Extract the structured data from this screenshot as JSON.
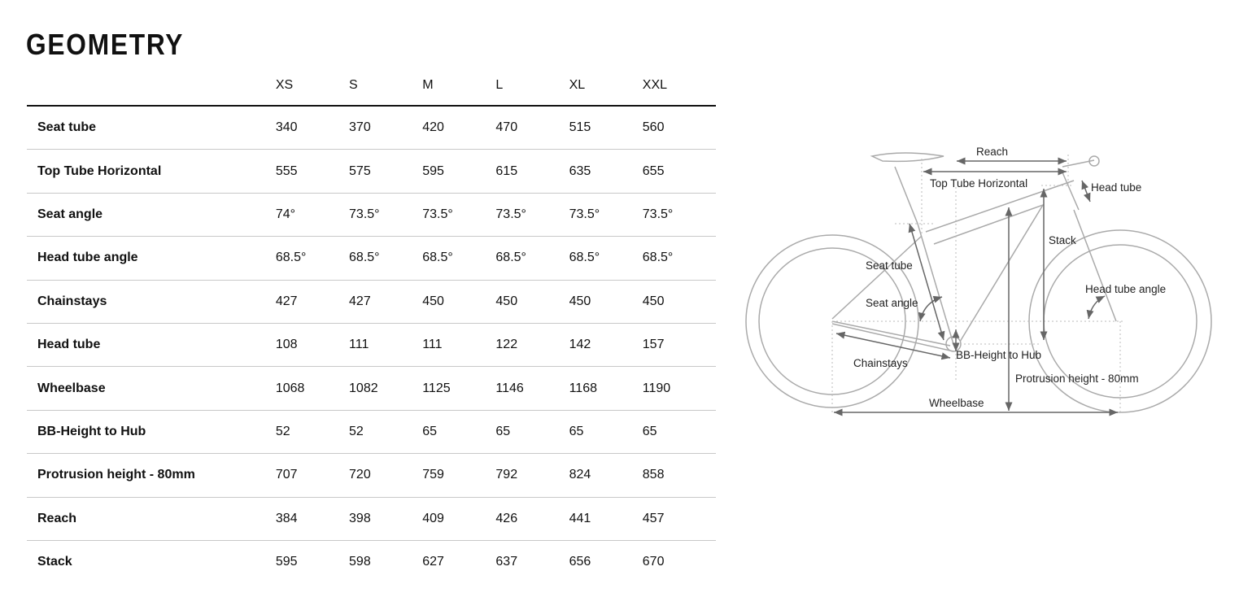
{
  "title": "GEOMETRY",
  "sizes": [
    "XS",
    "S",
    "M",
    "L",
    "XL",
    "XXL"
  ],
  "rows": [
    {
      "label": "Seat tube",
      "values": [
        "340",
        "370",
        "420",
        "470",
        "515",
        "560"
      ]
    },
    {
      "label": "Top Tube Horizontal",
      "values": [
        "555",
        "575",
        "595",
        "615",
        "635",
        "655"
      ]
    },
    {
      "label": "Seat angle",
      "values": [
        "74°",
        "73.5°",
        "73.5°",
        "73.5°",
        "73.5°",
        "73.5°"
      ]
    },
    {
      "label": "Head tube angle",
      "values": [
        "68.5°",
        "68.5°",
        "68.5°",
        "68.5°",
        "68.5°",
        "68.5°"
      ]
    },
    {
      "label": "Chainstays",
      "values": [
        "427",
        "427",
        "450",
        "450",
        "450",
        "450"
      ]
    },
    {
      "label": "Head tube",
      "values": [
        "108",
        "111",
        "111",
        "122",
        "142",
        "157"
      ]
    },
    {
      "label": "Wheelbase",
      "values": [
        "1068",
        "1082",
        "1125",
        "1146",
        "1168",
        "1190"
      ]
    },
    {
      "label": "BB-Height to Hub",
      "values": [
        "52",
        "52",
        "65",
        "65",
        "65",
        "65"
      ]
    },
    {
      "label": "Protrusion height - 80mm",
      "values": [
        "707",
        "720",
        "759",
        "792",
        "824",
        "858"
      ]
    },
    {
      "label": "Reach",
      "values": [
        "384",
        "398",
        "409",
        "426",
        "441",
        "457"
      ]
    },
    {
      "label": "Stack",
      "values": [
        "595",
        "598",
        "627",
        "637",
        "656",
        "670"
      ]
    }
  ],
  "diagram": {
    "reach": "Reach",
    "top_tube": "Top Tube Horizontal",
    "head_tube": "Head tube",
    "stack": "Stack",
    "seat_tube": "Seat tube",
    "head_tube_angle": "Head tube angle",
    "seat_angle": "Seat angle",
    "bb_height": "BB-Height to Hub",
    "chainstays": "Chainstays",
    "protrusion": "Protrusion height - 80mm",
    "wheelbase": "Wheelbase"
  }
}
